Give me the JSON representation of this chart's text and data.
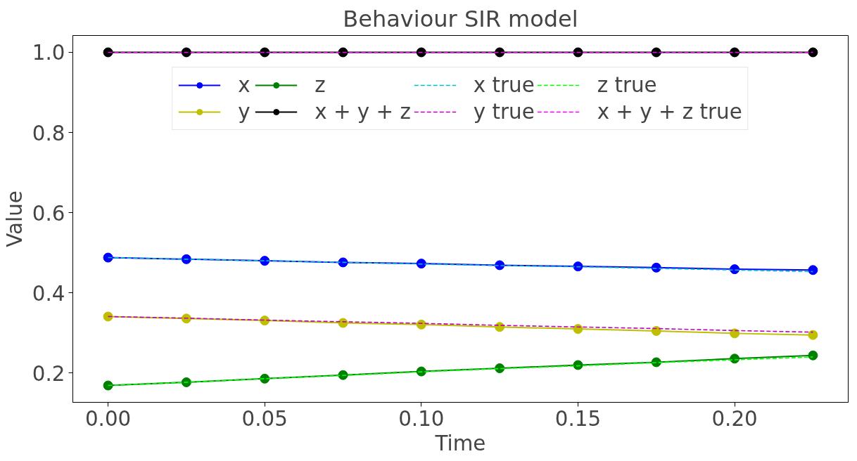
{
  "chart_data": {
    "type": "line",
    "title": "Behaviour SIR model",
    "xlabel": "Time",
    "ylabel": "Value",
    "x": [
      0,
      0.025,
      0.05,
      0.075,
      0.1,
      0.125,
      0.15,
      0.175,
      0.2,
      0.225
    ],
    "xlim": [
      -0.01125,
      0.23625
    ],
    "xticks": [
      {
        "value": 0,
        "label": "0.00"
      },
      {
        "value": 0.05,
        "label": "0.05"
      },
      {
        "value": 0.1,
        "label": "0.10"
      },
      {
        "value": 0.15,
        "label": "0.15"
      },
      {
        "value": 0.2,
        "label": "0.20"
      }
    ],
    "ylim": [
      0.127,
      1.042
    ],
    "yticks": [
      {
        "value": 0.2,
        "label": "0.2"
      },
      {
        "value": 0.4,
        "label": "0.4"
      },
      {
        "value": 0.6,
        "label": "0.6"
      },
      {
        "value": 0.8,
        "label": "0.8"
      },
      {
        "value": 1.0,
        "label": "1.0"
      }
    ],
    "grid": false,
    "legend": "top",
    "marker": "circle",
    "line_style": "solid",
    "series": [
      {
        "name": "x",
        "color": "#0000ff",
        "values": [
          0.488,
          0.484,
          0.48,
          0.476,
          0.473,
          0.469,
          0.466,
          0.463,
          0.459,
          0.457
        ]
      },
      {
        "name": "y",
        "color": "#bfbf00",
        "values": [
          0.341,
          0.336,
          0.331,
          0.325,
          0.321,
          0.315,
          0.31,
          0.305,
          0.299,
          0.295
        ]
      },
      {
        "name": "z",
        "color": "#008000",
        "values": [
          0.169,
          0.177,
          0.186,
          0.195,
          0.204,
          0.212,
          0.22,
          0.227,
          0.236,
          0.244
        ]
      },
      {
        "name": "x + y + z",
        "color": "#000000",
        "values": [
          1,
          1,
          1,
          1,
          1,
          1,
          1,
          1,
          1,
          1
        ]
      },
      {
        "name": "x true",
        "color": "#00bfbf",
        "marker": "none",
        "line_style": "dashed",
        "values": [
          0.488,
          0.484,
          0.48,
          0.476,
          0.472,
          0.468,
          0.465,
          0.461,
          0.457,
          0.453
        ]
      },
      {
        "name": "y true",
        "color": "#bf00bf",
        "marker": "none",
        "line_style": "dashed",
        "values": [
          0.341,
          0.337,
          0.332,
          0.328,
          0.324,
          0.319,
          0.315,
          0.311,
          0.306,
          0.302
        ]
      },
      {
        "name": "z true",
        "color": "#00ff00",
        "marker": "none",
        "line_style": "dashed",
        "values": [
          0.169,
          0.177,
          0.186,
          0.194,
          0.203,
          0.211,
          0.218,
          0.226,
          0.233,
          0.24
        ]
      },
      {
        "name": "x + y + z true",
        "color": "#ff00ff",
        "marker": "none",
        "line_style": "dashed",
        "values": [
          1,
          1,
          1,
          1,
          1,
          1,
          1,
          1,
          1,
          1
        ]
      }
    ]
  }
}
